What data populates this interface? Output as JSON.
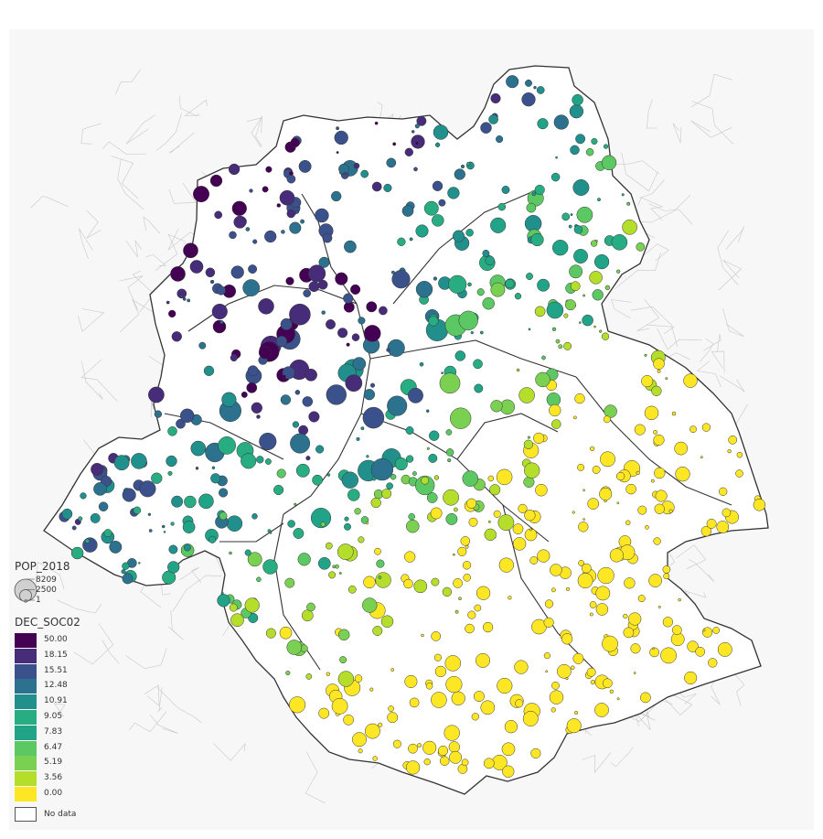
{
  "map": {
    "background": "#f7f7f7",
    "outline_color": "#333333",
    "inner_line_color": "#c4c4c4",
    "symbol": "proportional-circle"
  },
  "legend_size": {
    "title": "POP_2018",
    "labels": [
      "8209",
      "2500",
      "1"
    ],
    "values": [
      8209,
      2500,
      1
    ]
  },
  "legend_color": {
    "title": "DEC_SOC02",
    "classes": [
      {
        "label": "50.00",
        "color": "#440154"
      },
      {
        "label": "18.15",
        "color": "#472c7a"
      },
      {
        "label": "15.51",
        "color": "#3b518b"
      },
      {
        "label": "12.48",
        "color": "#2c718e"
      },
      {
        "label": "10.91",
        "color": "#21908d"
      },
      {
        "label": "9.05",
        "color": "#27ad81"
      },
      {
        "label": "7.83",
        "color": "#20a386"
      },
      {
        "label": "6.47",
        "color": "#5cc863"
      },
      {
        "label": "5.19",
        "color": "#7ad151"
      },
      {
        "label": "3.56",
        "color": "#b5de2b"
      },
      {
        "label": "0.00",
        "color": "#fde725"
      }
    ],
    "no_data_label": "No data",
    "no_data_color": "#ffffff"
  }
}
